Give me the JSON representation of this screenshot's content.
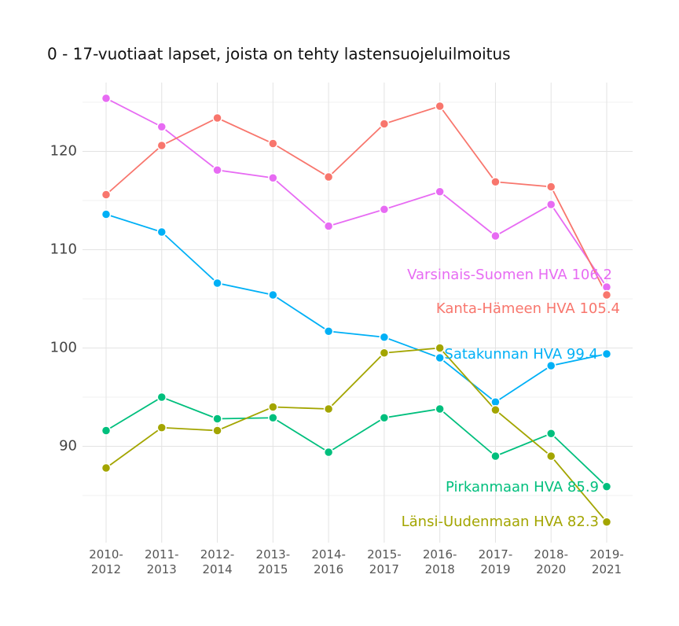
{
  "chart_data": {
    "type": "line",
    "title": "0 - 17-vuotiaat lapset, joista on tehty lastensuojeluilmoitus",
    "categories": [
      [
        "2010-",
        "2012"
      ],
      [
        "2011-",
        "2013"
      ],
      [
        "2012-",
        "2014"
      ],
      [
        "2013-",
        "2015"
      ],
      [
        "2014-",
        "2016"
      ],
      [
        "2015-",
        "2017"
      ],
      [
        "2016-",
        "2018"
      ],
      [
        "2017-",
        "2019"
      ],
      [
        "2018-",
        "2020"
      ],
      [
        "2019-",
        "2021"
      ]
    ],
    "series": [
      {
        "name": "Varsinais-Suomen HVA",
        "label": "Varsinais-Suomen HVA 106.2",
        "color": "#e76bf3",
        "values": [
          125.4,
          122.5,
          118.1,
          117.3,
          112.4,
          114.1,
          115.9,
          111.4,
          114.6,
          106.2
        ]
      },
      {
        "name": "Kanta-Hämeen HVA",
        "label": "Kanta-Hämeen HVA 105.4",
        "color": "#f8766d",
        "values": [
          115.6,
          120.6,
          123.4,
          120.8,
          117.4,
          122.8,
          124.6,
          116.9,
          116.4,
          105.4
        ]
      },
      {
        "name": "Satakunnan HVA",
        "label": "Satakunnan HVA 99.4",
        "color": "#00b0f6",
        "values": [
          113.6,
          111.8,
          106.6,
          105.4,
          101.7,
          101.1,
          99.0,
          94.5,
          98.2,
          99.4
        ]
      },
      {
        "name": "Pirkanmaan HVA",
        "label": "Pirkanmaan HVA 85.9",
        "color": "#00bf7d",
        "values": [
          91.6,
          95.0,
          92.8,
          92.9,
          89.4,
          92.9,
          93.8,
          89.0,
          91.3,
          85.9
        ]
      },
      {
        "name": "Länsi-Uudenmaan HVA",
        "label": "Länsi-Uudenmaan HVA 82.3",
        "color": "#a3a500",
        "values": [
          87.8,
          91.9,
          91.6,
          94.0,
          93.8,
          99.5,
          100.0,
          93.7,
          89.0,
          82.3
        ]
      }
    ],
    "ylim": [
      80.2,
      127
    ],
    "yticks": [
      90,
      100,
      110,
      120
    ],
    "yminor": [
      85,
      95,
      105,
      115,
      125
    ],
    "grid": true
  }
}
